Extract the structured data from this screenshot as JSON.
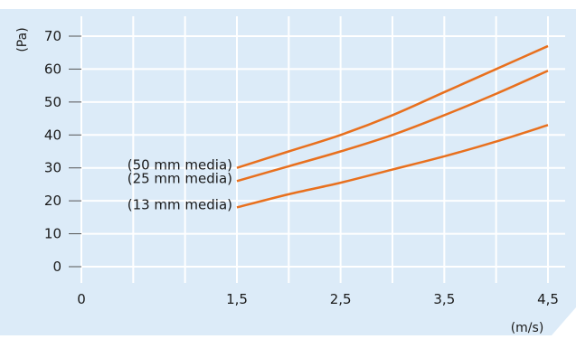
{
  "chart_data": {
    "type": "line",
    "ylabel": "(Pa)",
    "xlabel": "(m/s)",
    "xlim": [
      0,
      4.5
    ],
    "ylim": [
      0,
      70
    ],
    "grid": true,
    "x_ticks": [
      {
        "value": 0,
        "label": "0"
      },
      {
        "value": 1.5,
        "label": "1,5"
      },
      {
        "value": 2.5,
        "label": "2,5"
      },
      {
        "value": 3.5,
        "label": "3,5"
      },
      {
        "value": 4.5,
        "label": "4,5"
      }
    ],
    "x_gridlines": [
      0,
      0.5,
      1.0,
      1.5,
      2.0,
      2.5,
      3.0,
      3.5,
      4.0,
      4.5
    ],
    "y_ticks": [
      0,
      10,
      20,
      30,
      40,
      50,
      60,
      70
    ],
    "line_color": "#e8701e",
    "background_color": "#dcebf8",
    "series": [
      {
        "name": "(50 mm media)",
        "x": [
          1.5,
          2.0,
          2.5,
          3.0,
          3.5,
          4.0,
          4.5
        ],
        "y": [
          30,
          35,
          40,
          46,
          53,
          60,
          67
        ]
      },
      {
        "name": "(25 mm media)",
        "x": [
          1.5,
          2.0,
          2.5,
          3.0,
          3.5,
          4.0,
          4.5
        ],
        "y": [
          26,
          30.5,
          35,
          40,
          46,
          52.5,
          59.5
        ]
      },
      {
        "name": "(13 mm media)",
        "x": [
          1.5,
          2.0,
          2.5,
          3.0,
          3.5,
          4.0,
          4.5
        ],
        "y": [
          18,
          22,
          25.5,
          29.5,
          33.5,
          38,
          43
        ]
      }
    ]
  }
}
